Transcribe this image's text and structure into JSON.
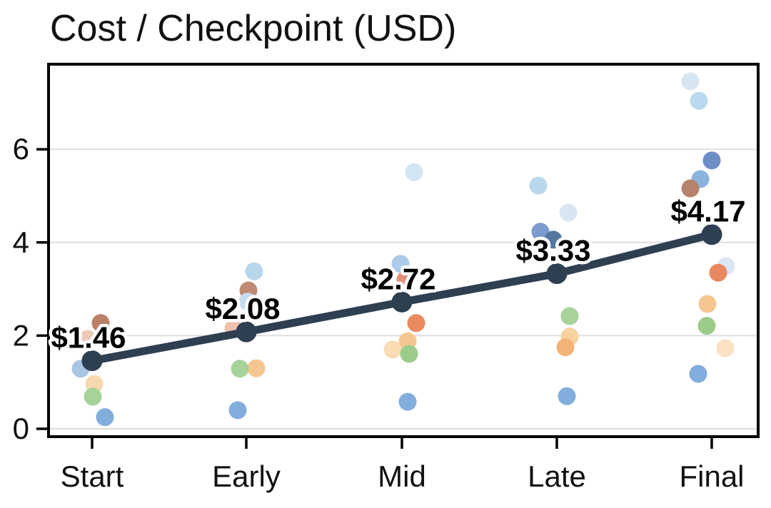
{
  "chart_data": {
    "type": "line",
    "title": "Cost / Checkpoint (USD)",
    "xlabel": "",
    "ylabel": "",
    "categories": [
      "Start",
      "Early",
      "Mid",
      "Late",
      "Final"
    ],
    "yticks": [
      "0",
      "2",
      "4",
      "6"
    ],
    "ytick_values": [
      0,
      2,
      4,
      6
    ],
    "ylim": [
      -0.2,
      7.85
    ],
    "grid": "horizontal",
    "legend": "none",
    "mean_series": {
      "name": "mean-cost-line",
      "values": [
        1.46,
        2.08,
        2.72,
        3.33,
        4.17
      ],
      "labels": [
        "$1.46",
        "$2.08",
        "$2.72",
        "$3.33",
        "$4.17"
      ],
      "color": "#2e3f51"
    },
    "scatter_series": {
      "name": "individual-run-costs",
      "points": [
        {
          "category": "Start",
          "value": 2.27,
          "jitter": 12,
          "color": "#bb8066"
        },
        {
          "category": "Start",
          "value": 1.93,
          "jitter": -6,
          "color": "#eec9b8"
        },
        {
          "category": "Start",
          "value": 1.29,
          "jitter": -16,
          "color": "#a9c7e4"
        },
        {
          "category": "Start",
          "value": 0.96,
          "jitter": 3,
          "color": "#f8d9ae"
        },
        {
          "category": "Start",
          "value": 0.69,
          "jitter": 1,
          "color": "#a5d39a"
        },
        {
          "category": "Start",
          "value": 0.25,
          "jitter": 18,
          "color": "#82aedd"
        },
        {
          "category": "Early",
          "value": 3.38,
          "jitter": 11,
          "color": "#b9d7ec"
        },
        {
          "category": "Early",
          "value": 2.97,
          "jitter": 3,
          "color": "#c08a72"
        },
        {
          "category": "Early",
          "value": 2.73,
          "jitter": 2,
          "color": "#c6dcef"
        },
        {
          "category": "Early",
          "value": 2.16,
          "jitter": -18,
          "color": "#eec0ac"
        },
        {
          "category": "Early",
          "value": 1.3,
          "jitter": 14,
          "color": "#f6c690"
        },
        {
          "category": "Early",
          "value": 1.29,
          "jitter": -9,
          "color": "#a5d39a"
        },
        {
          "category": "Early",
          "value": 0.4,
          "jitter": -12,
          "color": "#82aedd"
        },
        {
          "category": "Mid",
          "value": 5.51,
          "jitter": 17,
          "color": "#d3e5f4"
        },
        {
          "category": "Mid",
          "value": 3.54,
          "jitter": -2,
          "color": "#abcbe8"
        },
        {
          "category": "Mid",
          "value": 3.2,
          "jitter": 5,
          "color": "#e0917a"
        },
        {
          "category": "Mid",
          "value": 2.27,
          "jitter": 20,
          "color": "#e98a5f"
        },
        {
          "category": "Mid",
          "value": 1.88,
          "jitter": 8,
          "color": "#f6c690"
        },
        {
          "category": "Mid",
          "value": 1.7,
          "jitter": -13,
          "color": "#fadcb4"
        },
        {
          "category": "Mid",
          "value": 1.61,
          "jitter": 10,
          "color": "#9ccc8a"
        },
        {
          "category": "Mid",
          "value": 0.58,
          "jitter": 8,
          "color": "#82aedd"
        },
        {
          "category": "Late",
          "value": 5.22,
          "jitter": -26,
          "color": "#b9d7ec"
        },
        {
          "category": "Late",
          "value": 4.64,
          "jitter": 16,
          "color": "#d8e6f3"
        },
        {
          "category": "Late",
          "value": 4.23,
          "jitter": -23,
          "color": "#7d9cce"
        },
        {
          "category": "Late",
          "value": 4.06,
          "jitter": -5,
          "color": "#56779f"
        },
        {
          "category": "Late",
          "value": 2.42,
          "jitter": 18,
          "color": "#a5d39a"
        },
        {
          "category": "Late",
          "value": 1.98,
          "jitter": 18,
          "color": "#f8d1a0"
        },
        {
          "category": "Late",
          "value": 1.75,
          "jitter": 12,
          "color": "#f2b377"
        },
        {
          "category": "Late",
          "value": 0.7,
          "jitter": 14,
          "color": "#82aedd"
        },
        {
          "category": "Final",
          "value": 7.46,
          "jitter": -30,
          "color": "#d6e6f2"
        },
        {
          "category": "Final",
          "value": 7.04,
          "jitter": -18,
          "color": "#b9d9ee"
        },
        {
          "category": "Final",
          "value": 5.76,
          "jitter": 0,
          "color": "#6e8ec6"
        },
        {
          "category": "Final",
          "value": 5.36,
          "jitter": -16,
          "color": "#8ab4de"
        },
        {
          "category": "Final",
          "value": 5.16,
          "jitter": -30,
          "color": "#b5826b"
        },
        {
          "category": "Final",
          "value": 3.49,
          "jitter": 20,
          "color": "#dde4f2"
        },
        {
          "category": "Final",
          "value": 3.35,
          "jitter": 9,
          "color": "#e8875f"
        },
        {
          "category": "Final",
          "value": 2.68,
          "jitter": -6,
          "color": "#f6c690"
        },
        {
          "category": "Final",
          "value": 2.21,
          "jitter": -7,
          "color": "#9ccc8a"
        },
        {
          "category": "Final",
          "value": 1.73,
          "jitter": 19,
          "color": "#fbe2c4"
        },
        {
          "category": "Final",
          "value": 1.18,
          "jitter": -19,
          "color": "#82aedd"
        }
      ]
    },
    "colors": {
      "axis": "#000000",
      "grid": "#dddddd",
      "text": "#111111",
      "label_halo": "#ffffff",
      "background": "#ffffff"
    }
  }
}
